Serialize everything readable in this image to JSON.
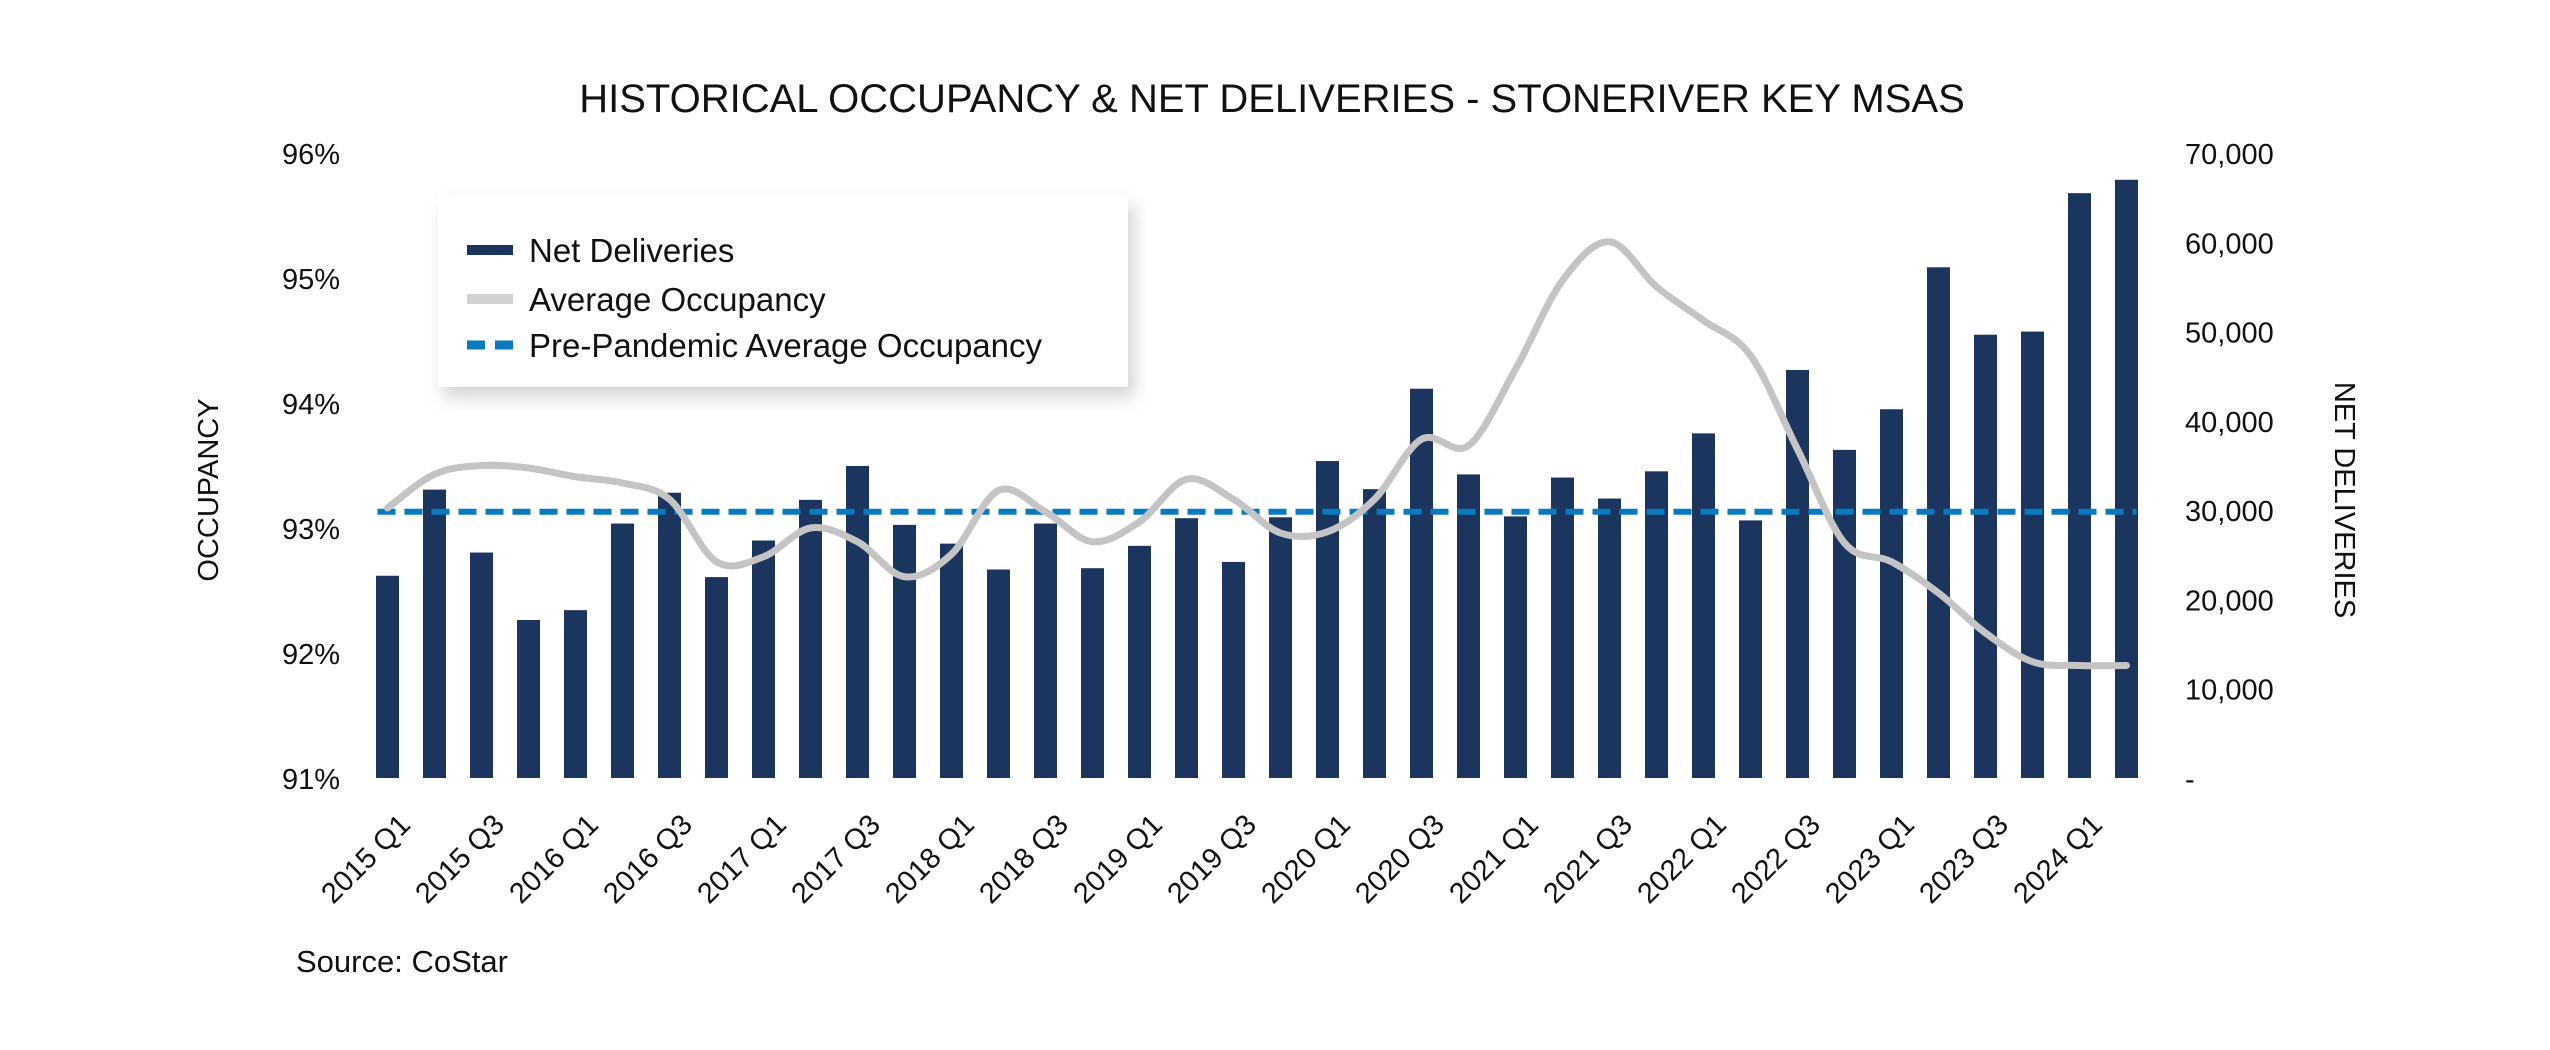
{
  "chart_data": {
    "type": "bar+line",
    "title": "HISTORICAL OCCUPANCY & NET DELIVERIES - STONERIVER KEY MSAS",
    "source": "Source: CoStar",
    "ylabel_left": "OCCUPANCY",
    "ylabel_right": "NET DELIVERIES",
    "ylim_left": [
      91,
      96
    ],
    "ylim_right": [
      0,
      70000
    ],
    "yticks_left": [
      "91%",
      "92%",
      "93%",
      "94%",
      "95%",
      "96%"
    ],
    "yticks_right": [
      "-",
      "10,000",
      "20,000",
      "30,000",
      "40,000",
      "50,000",
      "60,000",
      "70,000"
    ],
    "grid": false,
    "legend_placement": "top-left",
    "categories": [
      "2015 Q1",
      "2015 Q2",
      "2015 Q3",
      "2015 Q4",
      "2016 Q1",
      "2016 Q2",
      "2016 Q3",
      "2016 Q4",
      "2017 Q1",
      "2017 Q2",
      "2017 Q3",
      "2017 Q4",
      "2018 Q1",
      "2018 Q2",
      "2018 Q3",
      "2018 Q4",
      "2019 Q1",
      "2019 Q2",
      "2019 Q3",
      "2019 Q4",
      "2020 Q1",
      "2020 Q2",
      "2020 Q3",
      "2020 Q4",
      "2021 Q1",
      "2021 Q2",
      "2021 Q3",
      "2021 Q4",
      "2022 Q1",
      "2022 Q2",
      "2022 Q3",
      "2022 Q4",
      "2023 Q1",
      "2023 Q2",
      "2023 Q3",
      "2023 Q4",
      "2024 Q1",
      "2024 Q2"
    ],
    "xtick_labels": [
      "2015 Q1",
      "2015 Q3",
      "2016 Q1",
      "2016 Q3",
      "2017 Q1",
      "2017 Q3",
      "2018 Q1",
      "2018 Q3",
      "2019 Q1",
      "2019 Q3",
      "2020 Q1",
      "2020 Q3",
      "2021 Q1",
      "2021 Q3",
      "2022 Q1",
      "2022 Q3",
      "2023 Q1",
      "2023 Q3",
      "2024 Q1"
    ],
    "series": [
      {
        "name": "Net Deliveries",
        "type": "bar",
        "axis": "right",
        "color": "#1b355e",
        "values": [
          22650,
          32300,
          25250,
          17700,
          18800,
          28500,
          31950,
          22500,
          26600,
          31150,
          34950,
          28350,
          26250,
          23350,
          28500,
          23500,
          26000,
          29100,
          24200,
          29200,
          35500,
          32350,
          43600,
          34000,
          29300,
          33650,
          31300,
          34350,
          38600,
          28850,
          45700,
          36750,
          41300,
          57200,
          49650,
          50000,
          65500,
          67000
        ]
      },
      {
        "name": "Average Occupancy",
        "type": "line",
        "axis": "left",
        "color": "#c4c4c4",
        "values": [
          93.16,
          93.43,
          93.5,
          93.48,
          93.41,
          93.36,
          93.23,
          92.73,
          92.77,
          93.0,
          92.89,
          92.61,
          92.79,
          93.3,
          93.13,
          92.89,
          93.05,
          93.39,
          93.23,
          92.96,
          92.97,
          93.23,
          93.71,
          93.66,
          94.27,
          94.98,
          95.29,
          94.93,
          94.66,
          94.38,
          93.63,
          92.88,
          92.73,
          92.48,
          92.16,
          91.93,
          91.9,
          91.9
        ]
      },
      {
        "name": "Pre-Pandemic Average Occupancy",
        "type": "line",
        "style": "dashed",
        "axis": "left",
        "color": "#0a7abf",
        "value": 93.13
      }
    ]
  }
}
